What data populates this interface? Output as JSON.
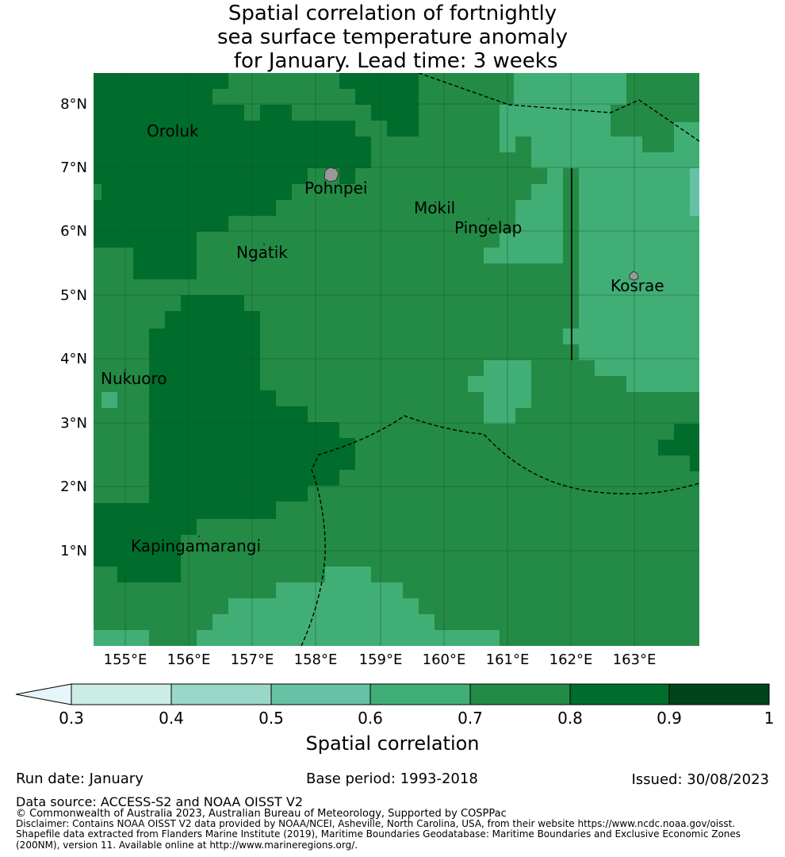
{
  "title": {
    "lines": [
      "Spatial correlation of fortnightly",
      "sea surface temperature anomaly",
      " for January. Lead time: 3 weeks"
    ]
  },
  "map": {
    "lat_labels": [
      "8°N",
      "7°N",
      "6°N",
      "5°N",
      "4°N",
      "3°N",
      "2°N",
      "1°N"
    ],
    "lon_labels": [
      "155°E",
      "156°E",
      "157°E",
      "158°E",
      "159°E",
      "160°E",
      "161°E",
      "162°E",
      "163°E"
    ],
    "places": [
      "Oroluk",
      "Pohnpei",
      "Mokil",
      "Pingelap",
      "Ngatik",
      "Kosrae",
      "Nukuoro",
      "Kapingamarangi"
    ],
    "colors": {
      "c03": "#e5f5f9",
      "c04": "#ccece6",
      "c05": "#99d8c9",
      "c06": "#66c2a4",
      "c07": "#41ae76",
      "c08": "#238b45",
      "c09": "#006d2c",
      "c10": "#00441b",
      "land": "#999999"
    }
  },
  "colorbar": {
    "ticks": [
      "0.3",
      "0.4",
      "0.5",
      "0.6",
      "0.7",
      "0.8",
      "0.9",
      "1"
    ],
    "label": "Spatial correlation"
  },
  "footer": {
    "run_date": "Run date: January",
    "base_period": "Base period: 1993-2018",
    "issued": "Issued: 30/08/2023",
    "data_source": "Data source: ACCESS-S2 and NOAA OISST V2",
    "copyright": "© Commonwealth of Australia 2023, Australian Bureau of Meteorology, Supported by COSPPac",
    "disclaimer": "Disclaimer: Contains NOAA OISST V2 data provided by NOAA/NCEI, Asheville, North Carolina, USA, from their website https://www.ncdc.noaa.gov/oisst.",
    "shapefile1": "Shapefile data extracted from Flanders Marine Institute (2019), Maritime Boundaries Geodatabase: Maritime Boundaries and Exclusive Economic Zones",
    "shapefile2": "(200NM), version 11. Available online at http://www.marineregions.org/."
  }
}
